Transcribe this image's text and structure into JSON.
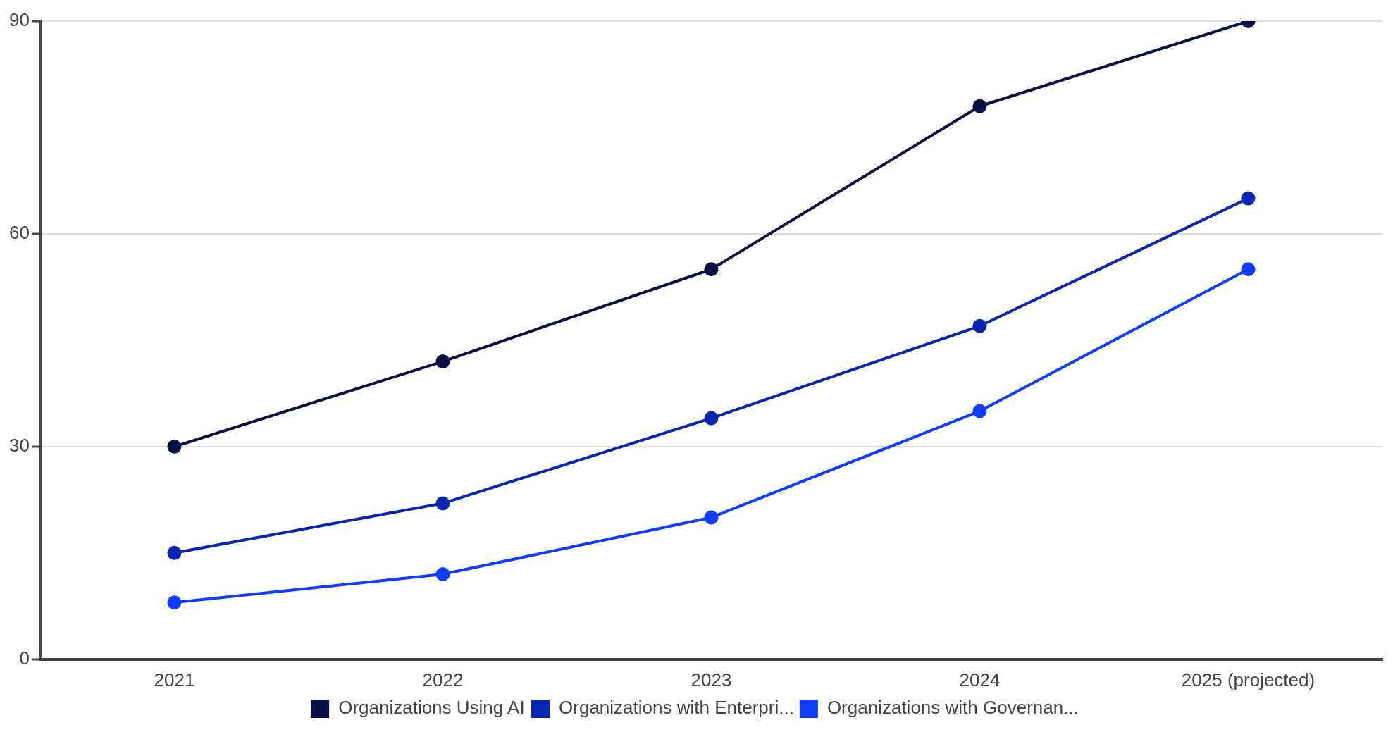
{
  "chart_data": {
    "type": "line",
    "categories": [
      "2021",
      "2022",
      "2023",
      "2024",
      "2025 (projected)"
    ],
    "series": [
      {
        "name": "Organizations Using AI",
        "color": "#0a1045",
        "values": [
          30,
          42,
          55,
          78,
          90
        ]
      },
      {
        "name": "Organizations with Enterpri...",
        "color": "#0a25b0",
        "values": [
          15,
          22,
          34,
          47,
          65
        ]
      },
      {
        "name": "Organizations with Governan...",
        "color": "#0f3cff",
        "values": [
          8,
          12,
          20,
          35,
          55
        ]
      }
    ],
    "ylim": [
      0,
      90
    ],
    "yticks": [
      0,
      30,
      60,
      90
    ],
    "grid": "y",
    "legend": "bottom",
    "marker": "circle",
    "line_style": "solid"
  }
}
